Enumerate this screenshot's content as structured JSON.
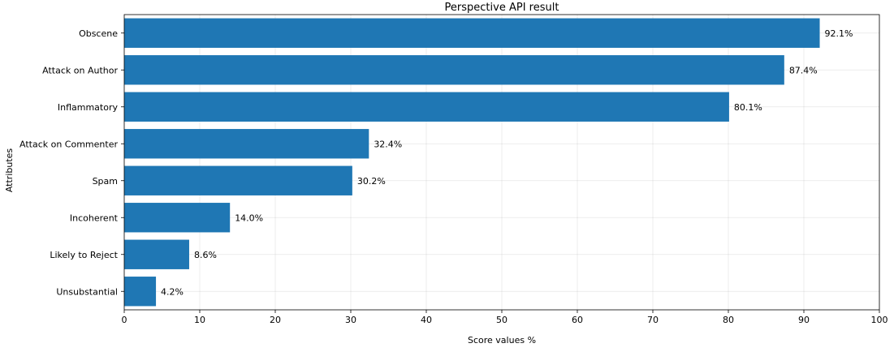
{
  "chart_data": {
    "type": "bar",
    "orientation": "horizontal",
    "title": "Perspective API result",
    "xlabel": "Score values %",
    "ylabel": "Attributes",
    "categories": [
      "Obscene",
      "Attack on Author",
      "Inflammatory",
      "Attack on Commenter",
      "Spam",
      "Incoherent",
      "Likely to Reject",
      "Unsubstantial"
    ],
    "values": [
      92.1,
      87.4,
      80.1,
      32.4,
      30.2,
      14.0,
      8.6,
      4.2
    ],
    "value_labels": [
      "92.1%",
      "87.4%",
      "80.1%",
      "32.4%",
      "30.2%",
      "14.0%",
      "8.6%",
      "4.2%"
    ],
    "xlim": [
      0,
      100
    ],
    "xticks": [
      "0",
      "10",
      "20",
      "30",
      "40",
      "50",
      "60",
      "70",
      "80",
      "90",
      "100"
    ],
    "grid": true,
    "bar_color": "#1f77b4"
  }
}
